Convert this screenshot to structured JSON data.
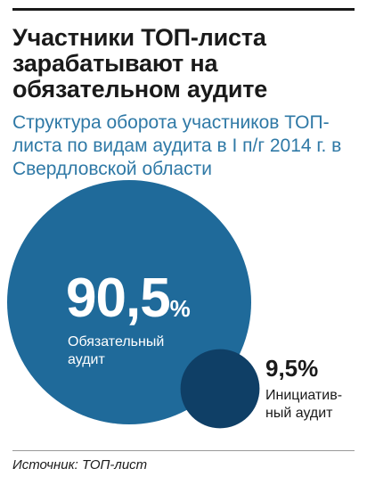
{
  "title": "Участники ТОП-листа зарабатывают на обязательном аудите",
  "subtitle": "Структура оборота участников ТОП-листа по видам аудита в I п/г 2014 г. в Свердловской области",
  "source": "Источник: ТОП-лист",
  "chart_data": {
    "type": "bubble",
    "unit": "%",
    "items": [
      {
        "label_lines": [
          "Обязательный",
          "аудит"
        ],
        "value": 90.5,
        "value_text": "90,5",
        "color": "#1f6a9a"
      },
      {
        "label_lines": [
          "Инициатив-",
          "ный аудит"
        ],
        "value": 9.5,
        "value_text": "9,5",
        "color": "#0f3f66"
      }
    ]
  }
}
